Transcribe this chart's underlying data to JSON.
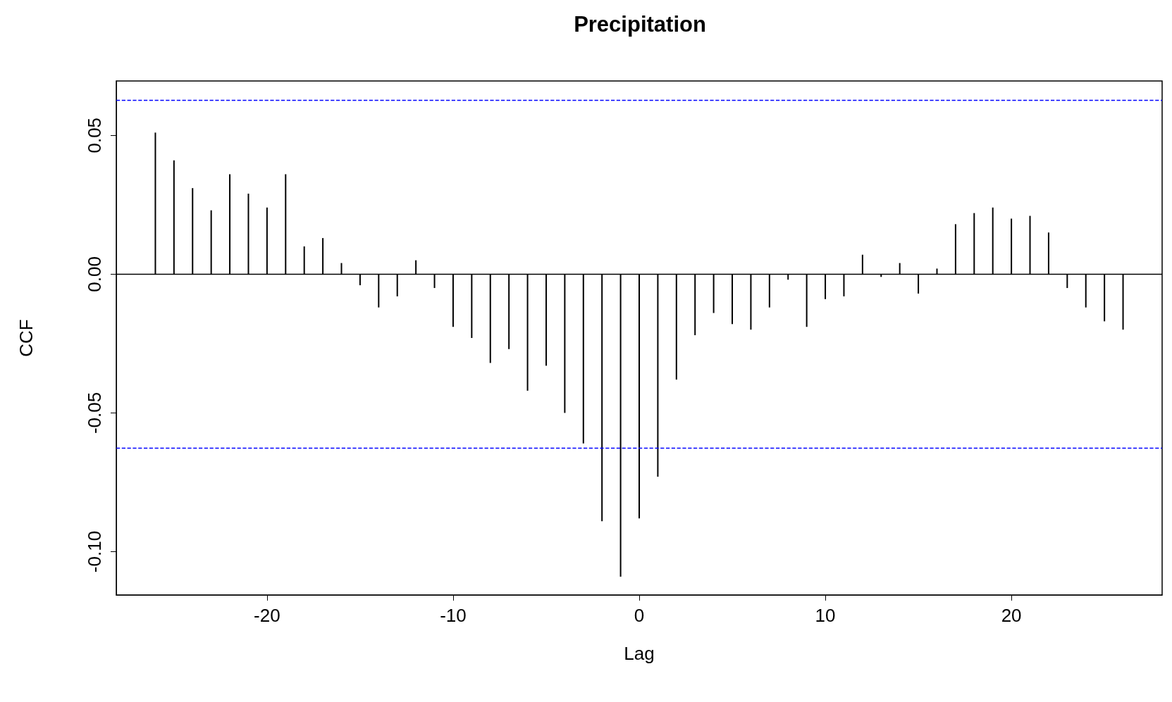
{
  "chart_data": {
    "type": "bar",
    "title": "Precipitation",
    "xlabel": "Lag",
    "ylabel": "CCF",
    "x": [
      -26,
      -25,
      -24,
      -23,
      -22,
      -21,
      -20,
      -19,
      -18,
      -17,
      -16,
      -15,
      -14,
      -13,
      -12,
      -11,
      -10,
      -9,
      -8,
      -7,
      -6,
      -5,
      -4,
      -3,
      -2,
      -1,
      0,
      1,
      2,
      3,
      4,
      5,
      6,
      7,
      8,
      9,
      10,
      11,
      12,
      13,
      14,
      15,
      16,
      17,
      18,
      19,
      20,
      21,
      22,
      23,
      24,
      25,
      26
    ],
    "values": [
      0.051,
      0.041,
      0.031,
      0.023,
      0.036,
      0.029,
      0.024,
      0.036,
      0.01,
      0.013,
      0.004,
      -0.004,
      -0.012,
      -0.008,
      0.005,
      -0.005,
      -0.019,
      -0.023,
      -0.032,
      -0.027,
      -0.042,
      -0.033,
      -0.05,
      -0.061,
      -0.089,
      -0.109,
      -0.088,
      -0.073,
      -0.038,
      -0.022,
      -0.014,
      -0.018,
      -0.02,
      -0.012,
      -0.002,
      -0.019,
      -0.009,
      -0.008,
      0.007,
      -0.001,
      0.004,
      -0.007,
      0.002,
      0.018,
      0.022,
      0.024,
      0.02,
      0.021,
      0.015,
      -0.005,
      -0.012,
      -0.017,
      -0.02
    ],
    "color": "#000000",
    "xlim": [
      -28.1,
      28.1
    ],
    "xticks": [
      -20,
      -10,
      0,
      10,
      20
    ],
    "ylim": [
      -0.1156,
      0.0696
    ],
    "yticks": [
      {
        "value": -0.1,
        "label": "-0.10"
      },
      {
        "value": -0.05,
        "label": "-0.05"
      },
      {
        "value": 0,
        "label": "0.00"
      },
      {
        "value": 0.05,
        "label": "0.05"
      }
    ],
    "ref_lines": [
      {
        "axis": "y",
        "value": 0.0626,
        "color": "#0000ff",
        "line_style": "dashed"
      },
      {
        "axis": "y",
        "value": -0.0626,
        "color": "#0000ff",
        "line_style": "dashed"
      },
      {
        "axis": "y",
        "value": 0,
        "color": "#000000",
        "line_style": "solid"
      }
    ],
    "grid": false
  }
}
